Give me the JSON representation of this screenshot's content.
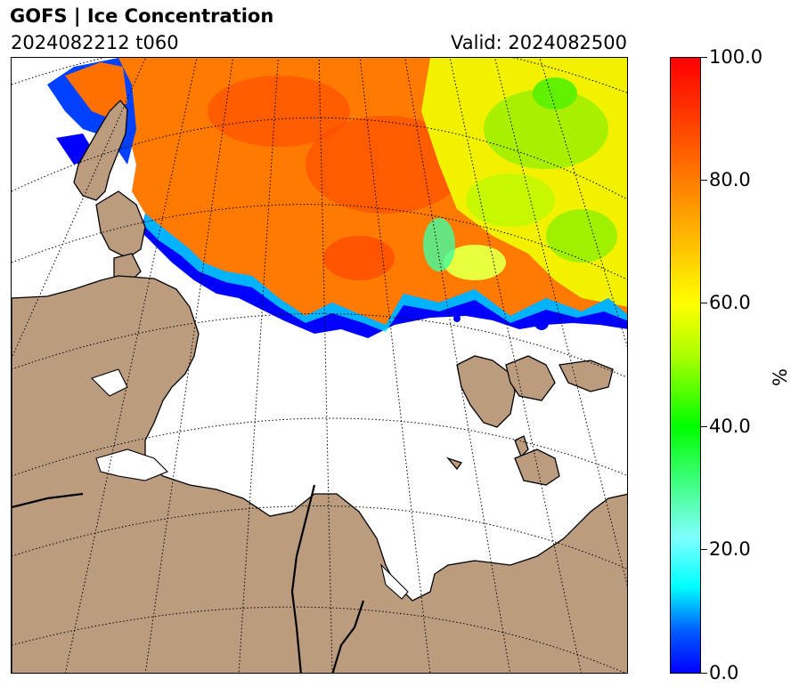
{
  "header": {
    "title": "GOFS  |  Ice Concentration",
    "init_label": "2024082212 t060",
    "valid_label": "Valid: 2024082500"
  },
  "map": {
    "land_color": "#bc9c7e",
    "coastline_color": "#000000",
    "graticule_style": "dotted",
    "ice_colormap": "rainbow-like (blue → cyan → green → yellow → orange → red)"
  },
  "colorbar": {
    "label": "%",
    "min": 0.0,
    "max": 100.0,
    "ticks": [
      {
        "value": 0.0,
        "label": "0.0"
      },
      {
        "value": 20.0,
        "label": "20.0"
      },
      {
        "value": 40.0,
        "label": "40.0"
      },
      {
        "value": 60.0,
        "label": "60.0"
      },
      {
        "value": 80.0,
        "label": "80.0"
      },
      {
        "value": 100.0,
        "label": "100.0"
      }
    ]
  }
}
